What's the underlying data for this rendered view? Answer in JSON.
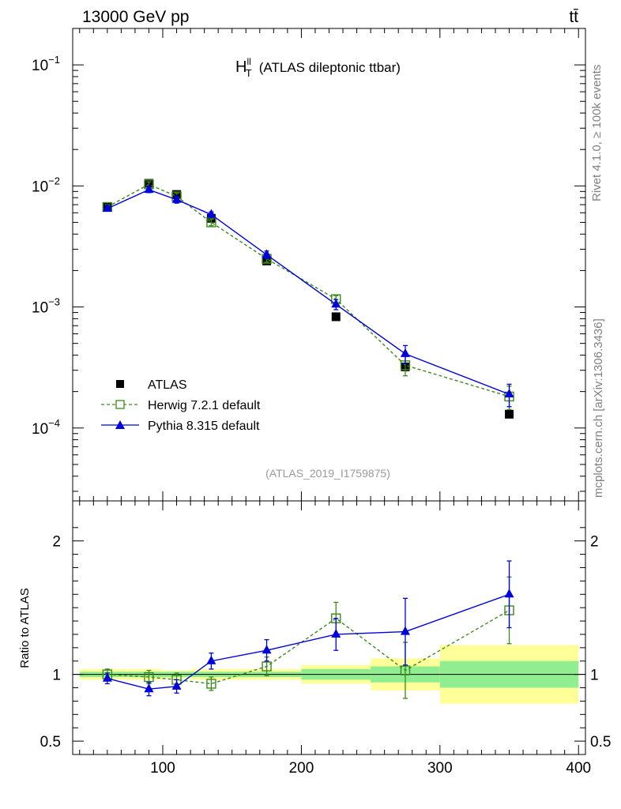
{
  "header": {
    "energy_label": "13000 GeV pp",
    "process_label": "tt̄"
  },
  "side_labels": {
    "rivet": "Rivet 4.1.0, ≥ 100k events",
    "site": "mcplots.cern.ch [arXiv:1306.3436]"
  },
  "chart_data": [
    {
      "type": "scatter",
      "panel": "main",
      "title_main": "H",
      "title_sup": "ll",
      "title_sub": "T",
      "title_rest": "(ATLAS dileptonic ttbar)",
      "watermark": "(ATLAS_2019_I1759875)",
      "yscale": "log",
      "ylim": [
        2.5e-05,
        0.2
      ],
      "xlim": [
        35,
        405
      ],
      "ytick_labels": [
        {
          "base": "10",
          "exp": "−1",
          "value": 0.1
        },
        {
          "base": "10",
          "exp": "−2",
          "value": 0.01
        },
        {
          "base": "10",
          "exp": "−3",
          "value": 0.001
        },
        {
          "base": "10",
          "exp": "−4",
          "value": 0.0001
        }
      ],
      "x": [
        60,
        90,
        110,
        135,
        175,
        225,
        275,
        350
      ],
      "series": [
        {
          "name": "ATLAS",
          "marker": "square-filled",
          "color": "#000000",
          "values": [
            0.0067,
            0.0105,
            0.0085,
            0.0054,
            0.0024,
            0.00083,
            0.00032,
            0.00013
          ]
        },
        {
          "name": "Herwig 7.2.1 default",
          "marker": "square-open",
          "color": "#3a8a1a",
          "line": "dashed",
          "values": [
            0.0067,
            0.0103,
            0.0082,
            0.005,
            0.0025,
            0.00116,
            0.00033,
            0.000182
          ],
          "err": [
            0.0003,
            0.0005,
            0.0005,
            0.0003,
            0.00015,
            8e-05,
            6e-05,
            4e-05
          ]
        },
        {
          "name": "Pythia 8.315 default",
          "marker": "triangle-filled",
          "color": "#0000dd",
          "line": "solid",
          "values": [
            0.0065,
            0.0093,
            0.0077,
            0.0058,
            0.0027,
            0.00105,
            0.00041,
            0.00019
          ],
          "err": [
            0.0003,
            0.0005,
            0.0005,
            0.0003,
            0.0002,
            0.0001,
            7e-05,
            4e-05
          ]
        }
      ]
    },
    {
      "type": "scatter",
      "panel": "ratio",
      "ylabel": "Ratio to ATLAS",
      "ylim": [
        0.4,
        2.3
      ],
      "xlim": [
        35,
        405
      ],
      "xticks": [
        100,
        200,
        300,
        400
      ],
      "xtick_labels": [
        "100",
        "200",
        "300",
        "400"
      ],
      "ytick_labels": [
        {
          "label": "2",
          "value": 2
        },
        {
          "label": "1",
          "value": 1
        },
        {
          "label": "0.5",
          "value": 0.5
        }
      ],
      "bands": [
        {
          "x0": 40,
          "x1": 80,
          "inner": 0.02,
          "outer": 0.04
        },
        {
          "x0": 80,
          "x1": 100,
          "inner": 0.02,
          "outer": 0.04
        },
        {
          "x0": 100,
          "x1": 120,
          "inner": 0.02,
          "outer": 0.03
        },
        {
          "x0": 120,
          "x1": 150,
          "inner": 0.02,
          "outer": 0.04
        },
        {
          "x0": 150,
          "x1": 200,
          "inner": 0.02,
          "outer": 0.04
        },
        {
          "x0": 200,
          "x1": 250,
          "inner": 0.04,
          "outer": 0.07
        },
        {
          "x0": 250,
          "x1": 300,
          "inner": 0.06,
          "outer": 0.12
        },
        {
          "x0": 300,
          "x1": 400,
          "inner": 0.1,
          "outer": 0.22
        }
      ],
      "x": [
        60,
        90,
        110,
        135,
        175,
        225,
        275,
        350
      ],
      "series": [
        {
          "name": "Herwig 7.2.1 default",
          "marker": "square-open",
          "color": "#3a8a1a",
          "line": "dashed",
          "values": [
            1.0,
            0.98,
            0.96,
            0.93,
            1.06,
            1.42,
            1.03,
            1.48
          ],
          "err": [
            0.04,
            0.05,
            0.05,
            0.05,
            0.07,
            0.12,
            0.21,
            0.25
          ]
        },
        {
          "name": "Pythia 8.315 default",
          "marker": "triangle-filled",
          "color": "#0000dd",
          "line": "solid",
          "values": [
            0.97,
            0.89,
            0.91,
            1.1,
            1.18,
            1.3,
            1.32,
            1.6
          ],
          "err": [
            0.04,
            0.05,
            0.05,
            0.06,
            0.08,
            0.12,
            0.25,
            0.25
          ]
        }
      ]
    }
  ],
  "legend": {
    "items": [
      {
        "label": "ATLAS",
        "marker": "square-filled",
        "color": "#000000",
        "line": "none"
      },
      {
        "label": "Herwig 7.2.1 default",
        "marker": "square-open",
        "color": "#3a8a1a",
        "line": "dashed"
      },
      {
        "label": "Pythia 8.315 default",
        "marker": "triangle-filled",
        "color": "#0000dd",
        "line": "solid"
      }
    ]
  },
  "colors": {
    "band_inner": "#90ee90",
    "band_outer": "#ffff99"
  }
}
